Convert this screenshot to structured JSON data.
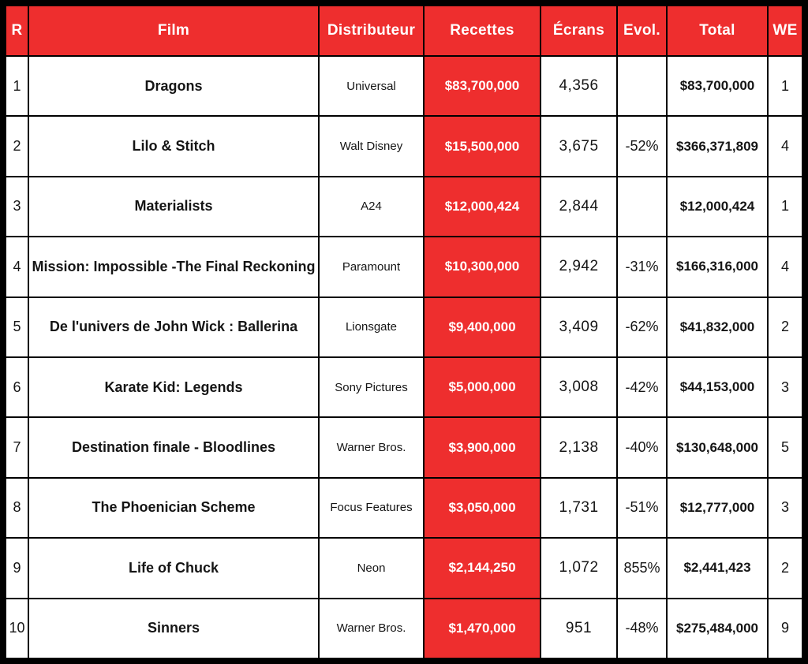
{
  "colors": {
    "accent_red": "#ee2e2e",
    "border_black": "#000000",
    "cell_white": "#ffffff",
    "header_text": "#ffffff",
    "body_text": "#151515"
  },
  "table": {
    "columns": [
      {
        "key": "rank",
        "label": "R"
      },
      {
        "key": "film",
        "label": "Film"
      },
      {
        "key": "distributor",
        "label": "Distributeur"
      },
      {
        "key": "gross",
        "label": "Recettes"
      },
      {
        "key": "screens",
        "label": "Écrans"
      },
      {
        "key": "evolution",
        "label": "Evol."
      },
      {
        "key": "total",
        "label": "Total"
      },
      {
        "key": "weekend",
        "label": "WE"
      }
    ],
    "rows": [
      {
        "rank": "1",
        "film": "Dragons",
        "distributor": "Universal",
        "gross": "$83,700,000",
        "screens": "4,356",
        "evolution": "",
        "total": "$83,700,000",
        "weekend": "1"
      },
      {
        "rank": "2",
        "film": "Lilo & Stitch",
        "distributor": "Walt Disney",
        "gross": "$15,500,000",
        "screens": "3,675",
        "evolution": "-52%",
        "total": "$366,371,809",
        "weekend": "4"
      },
      {
        "rank": "3",
        "film": "Materialists",
        "distributor": "A24",
        "gross": "$12,000,424",
        "screens": "2,844",
        "evolution": "",
        "total": "$12,000,424",
        "weekend": "1"
      },
      {
        "rank": "4",
        "film": "Mission: Impossible -The Final Reckoning",
        "distributor": "Paramount",
        "gross": "$10,300,000",
        "screens": "2,942",
        "evolution": "-31%",
        "total": "$166,316,000",
        "weekend": "4"
      },
      {
        "rank": "5",
        "film": "De l'univers de John Wick : Ballerina",
        "distributor": "Lionsgate",
        "gross": "$9,400,000",
        "screens": "3,409",
        "evolution": "-62%",
        "total": "$41,832,000",
        "weekend": "2"
      },
      {
        "rank": "6",
        "film": "Karate Kid: Legends",
        "distributor": "Sony Pictures",
        "gross": "$5,000,000",
        "screens": "3,008",
        "evolution": "-42%",
        "total": "$44,153,000",
        "weekend": "3"
      },
      {
        "rank": "7",
        "film": "Destination finale - Bloodlines",
        "distributor": "Warner Bros.",
        "gross": "$3,900,000",
        "screens": "2,138",
        "evolution": "-40%",
        "total": "$130,648,000",
        "weekend": "5"
      },
      {
        "rank": "8",
        "film": "The Phoenician Scheme",
        "distributor": "Focus Features",
        "gross": "$3,050,000",
        "screens": "1,731",
        "evolution": "-51%",
        "total": "$12,777,000",
        "weekend": "3"
      },
      {
        "rank": "9",
        "film": "Life of Chuck",
        "distributor": "Neon",
        "gross": "$2,144,250",
        "screens": "1,072",
        "evolution": "855%",
        "total": "$2,441,423",
        "weekend": "2"
      },
      {
        "rank": "10",
        "film": "Sinners",
        "distributor": "Warner Bros.",
        "gross": "$1,470,000",
        "screens": "951",
        "evolution": "-48%",
        "total": "$275,484,000",
        "weekend": "9"
      }
    ]
  }
}
